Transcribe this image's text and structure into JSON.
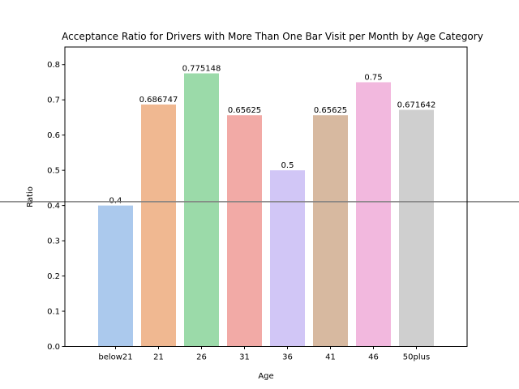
{
  "chart_data": {
    "type": "bar",
    "title": "Acceptance Ratio for Drivers with More Than One Bar Visit per Month by Age Category",
    "xlabel": "Age",
    "ylabel": "Ratio",
    "categories": [
      "below21",
      "21",
      "26",
      "31",
      "36",
      "41",
      "46",
      "50plus"
    ],
    "values": [
      0.4,
      0.686747,
      0.775148,
      0.65625,
      0.5,
      0.65625,
      0.75,
      0.671642
    ],
    "value_labels": [
      "0.4",
      "0.686747",
      "0.775148",
      "0.65625",
      "0.5",
      "0.65625",
      "0.75",
      "0.671642"
    ],
    "colors": [
      "#abc9ed",
      "#f0b891",
      "#9bdaa9",
      "#f2aaa6",
      "#d1c6f6",
      "#d7b9a0",
      "#f2b8de",
      "#cfcfcf"
    ],
    "ylim": [
      0,
      0.85
    ],
    "yticks": [
      0.0,
      0.1,
      0.2,
      0.3,
      0.4,
      0.5,
      0.6,
      0.7,
      0.8
    ],
    "ytick_labels": [
      "0.0",
      "0.1",
      "0.2",
      "0.3",
      "0.4",
      "0.5",
      "0.6",
      "0.7",
      "0.8"
    ],
    "reference_line": {
      "y": 0.411,
      "color": "#808080"
    },
    "grid": false
  }
}
